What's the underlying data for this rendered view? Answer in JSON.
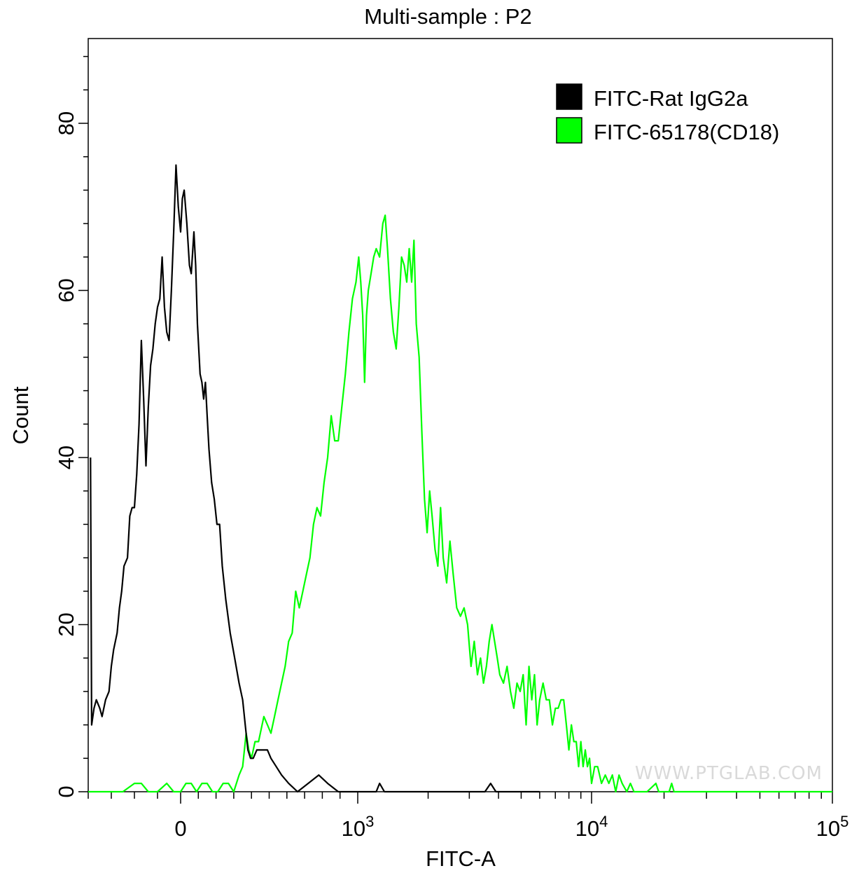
{
  "chart_data": {
    "type": "line",
    "title": "Multi-sample : P2",
    "xlabel": "FITC-A",
    "ylabel": "Count",
    "xscale": "biexponential (linear near 0, log above ~10^3)",
    "xlim": [
      -400,
      100000
    ],
    "ylim": [
      0,
      90
    ],
    "x_tick_labels": [
      {
        "value": 0,
        "label": "0"
      },
      {
        "value": 1000,
        "label": "10",
        "exp": "3"
      },
      {
        "value": 10000,
        "label": "10",
        "exp": "4"
      },
      {
        "value": 100000,
        "label": "10",
        "exp": "5"
      }
    ],
    "y_ticks": [
      0,
      20,
      40,
      60,
      80
    ],
    "legend": {
      "position": "top-right",
      "entries": [
        {
          "label": "FITC-Rat IgG2a",
          "color": "#000000"
        },
        {
          "label": "FITC-65178(CD18)",
          "color": "#00ff00"
        }
      ]
    },
    "series": [
      {
        "name": "FITC-Rat IgG2a",
        "color": "#000000",
        "points": [
          [
            -390,
            40
          ],
          [
            -385,
            8
          ],
          [
            -375,
            10
          ],
          [
            -365,
            11
          ],
          [
            -350,
            10
          ],
          [
            -340,
            9
          ],
          [
            -325,
            11
          ],
          [
            -310,
            12
          ],
          [
            -300,
            15
          ],
          [
            -290,
            17
          ],
          [
            -275,
            19
          ],
          [
            -265,
            22
          ],
          [
            -255,
            24
          ],
          [
            -245,
            27
          ],
          [
            -230,
            28
          ],
          [
            -220,
            33
          ],
          [
            -210,
            34
          ],
          [
            -200,
            34
          ],
          [
            -190,
            38
          ],
          [
            -180,
            44
          ],
          [
            -170,
            54
          ],
          [
            -160,
            47
          ],
          [
            -150,
            39
          ],
          [
            -140,
            46
          ],
          [
            -130,
            51
          ],
          [
            -120,
            53
          ],
          [
            -110,
            56
          ],
          [
            -100,
            58
          ],
          [
            -90,
            59
          ],
          [
            -80,
            64
          ],
          [
            -70,
            58
          ],
          [
            -60,
            55
          ],
          [
            -50,
            54
          ],
          [
            -40,
            60
          ],
          [
            -30,
            67
          ],
          [
            -20,
            75
          ],
          [
            -10,
            70
          ],
          [
            0,
            67
          ],
          [
            10,
            71
          ],
          [
            20,
            72
          ],
          [
            35,
            68
          ],
          [
            50,
            63
          ],
          [
            60,
            62
          ],
          [
            75,
            67
          ],
          [
            85,
            63
          ],
          [
            95,
            56
          ],
          [
            110,
            50
          ],
          [
            120,
            49
          ],
          [
            130,
            47
          ],
          [
            140,
            49
          ],
          [
            150,
            45
          ],
          [
            160,
            41
          ],
          [
            175,
            37
          ],
          [
            190,
            35
          ],
          [
            205,
            32
          ],
          [
            220,
            32
          ],
          [
            235,
            27
          ],
          [
            255,
            23
          ],
          [
            280,
            19
          ],
          [
            305,
            16
          ],
          [
            330,
            13
          ],
          [
            350,
            11
          ],
          [
            365,
            8
          ],
          [
            380,
            5
          ],
          [
            395,
            4
          ],
          [
            410,
            4
          ],
          [
            430,
            5
          ],
          [
            450,
            5
          ],
          [
            470,
            5
          ],
          [
            490,
            5
          ],
          [
            510,
            4
          ],
          [
            540,
            3
          ],
          [
            570,
            2
          ],
          [
            610,
            1
          ],
          [
            660,
            0
          ],
          [
            720,
            1
          ],
          [
            780,
            2
          ],
          [
            830,
            1
          ],
          [
            890,
            0
          ],
          [
            1000,
            0
          ],
          [
            1200,
            0
          ],
          [
            1240,
            1
          ],
          [
            1300,
            0
          ],
          [
            2000,
            0
          ],
          [
            3500,
            0
          ],
          [
            3700,
            1
          ],
          [
            3900,
            0
          ],
          [
            6000,
            0
          ]
        ]
      },
      {
        "name": "FITC-65178(CD18)",
        "color": "#00ff00",
        "points": [
          [
            -400,
            0
          ],
          [
            -300,
            0
          ],
          [
            -250,
            0
          ],
          [
            -200,
            1
          ],
          [
            -170,
            1
          ],
          [
            -140,
            0
          ],
          [
            -100,
            0
          ],
          [
            -60,
            1
          ],
          [
            -30,
            0
          ],
          [
            0,
            0
          ],
          [
            30,
            1
          ],
          [
            60,
            1
          ],
          [
            90,
            0
          ],
          [
            120,
            1
          ],
          [
            150,
            1
          ],
          [
            180,
            0
          ],
          [
            210,
            0
          ],
          [
            240,
            1
          ],
          [
            270,
            1
          ],
          [
            300,
            0
          ],
          [
            330,
            2
          ],
          [
            350,
            3
          ],
          [
            370,
            7
          ],
          [
            385,
            5
          ],
          [
            400,
            4
          ],
          [
            420,
            6
          ],
          [
            440,
            6
          ],
          [
            470,
            9
          ],
          [
            490,
            8
          ],
          [
            510,
            7
          ],
          [
            530,
            9
          ],
          [
            550,
            11
          ],
          [
            570,
            13
          ],
          [
            590,
            15
          ],
          [
            610,
            18
          ],
          [
            630,
            19
          ],
          [
            650,
            24
          ],
          [
            670,
            22
          ],
          [
            690,
            24
          ],
          [
            710,
            26
          ],
          [
            730,
            28
          ],
          [
            750,
            32
          ],
          [
            770,
            34
          ],
          [
            790,
            33
          ],
          [
            810,
            37
          ],
          [
            830,
            40
          ],
          [
            850,
            45
          ],
          [
            870,
            42
          ],
          [
            890,
            42
          ],
          [
            910,
            46
          ],
          [
            930,
            50
          ],
          [
            950,
            55
          ],
          [
            970,
            59
          ],
          [
            990,
            61
          ],
          [
            1010,
            64
          ],
          [
            1030,
            61
          ],
          [
            1050,
            57
          ],
          [
            1070,
            49
          ],
          [
            1090,
            57
          ],
          [
            1110,
            60
          ],
          [
            1140,
            62
          ],
          [
            1170,
            64
          ],
          [
            1200,
            65
          ],
          [
            1240,
            64
          ],
          [
            1280,
            68
          ],
          [
            1310,
            69
          ],
          [
            1340,
            65
          ],
          [
            1380,
            59
          ],
          [
            1420,
            55
          ],
          [
            1460,
            53
          ],
          [
            1500,
            58
          ],
          [
            1540,
            64
          ],
          [
            1580,
            63
          ],
          [
            1620,
            61
          ],
          [
            1660,
            65
          ],
          [
            1700,
            61
          ],
          [
            1740,
            66
          ],
          [
            1780,
            56
          ],
          [
            1830,
            52
          ],
          [
            1880,
            43
          ],
          [
            1930,
            35
          ],
          [
            1980,
            31
          ],
          [
            2030,
            36
          ],
          [
            2080,
            33
          ],
          [
            2140,
            29
          ],
          [
            2200,
            27
          ],
          [
            2260,
            34
          ],
          [
            2320,
            28
          ],
          [
            2400,
            25
          ],
          [
            2480,
            30
          ],
          [
            2560,
            26
          ],
          [
            2650,
            22
          ],
          [
            2750,
            21
          ],
          [
            2850,
            22
          ],
          [
            2950,
            20
          ],
          [
            3050,
            15
          ],
          [
            3150,
            18
          ],
          [
            3250,
            14
          ],
          [
            3350,
            16
          ],
          [
            3450,
            13
          ],
          [
            3550,
            15
          ],
          [
            3650,
            18
          ],
          [
            3750,
            20
          ],
          [
            3850,
            18
          ],
          [
            3950,
            16
          ],
          [
            4050,
            14
          ],
          [
            4200,
            13
          ],
          [
            4350,
            15
          ],
          [
            4500,
            12
          ],
          [
            4650,
            10
          ],
          [
            4800,
            13
          ],
          [
            4950,
            12
          ],
          [
            5100,
            14
          ],
          [
            5250,
            8
          ],
          [
            5400,
            15
          ],
          [
            5550,
            11
          ],
          [
            5700,
            14
          ],
          [
            5850,
            8
          ],
          [
            6000,
            11
          ],
          [
            6200,
            13
          ],
          [
            6400,
            11
          ],
          [
            6600,
            11
          ],
          [
            6800,
            8
          ],
          [
            7000,
            10
          ],
          [
            7200,
            10
          ],
          [
            7400,
            11
          ],
          [
            7600,
            11
          ],
          [
            7800,
            8
          ],
          [
            8000,
            5
          ],
          [
            8200,
            8
          ],
          [
            8400,
            6
          ],
          [
            8600,
            6
          ],
          [
            8800,
            3
          ],
          [
            9000,
            6
          ],
          [
            9200,
            3
          ],
          [
            9400,
            5
          ],
          [
            9600,
            3
          ],
          [
            9800,
            4
          ],
          [
            10000,
            1
          ],
          [
            10300,
            3
          ],
          [
            10600,
            3
          ],
          [
            11000,
            1
          ],
          [
            11400,
            2
          ],
          [
            11800,
            1
          ],
          [
            12200,
            2
          ],
          [
            12600,
            0
          ],
          [
            13000,
            2
          ],
          [
            13400,
            1
          ],
          [
            14000,
            0
          ],
          [
            14500,
            1
          ],
          [
            15000,
            0
          ],
          [
            17000,
            0
          ],
          [
            18500,
            1
          ],
          [
            19000,
            0
          ],
          [
            21000,
            0
          ],
          [
            21500,
            1
          ],
          [
            22000,
            0
          ],
          [
            100000,
            0
          ]
        ]
      }
    ],
    "watermark": "WWW.PTGLAB.COM"
  }
}
